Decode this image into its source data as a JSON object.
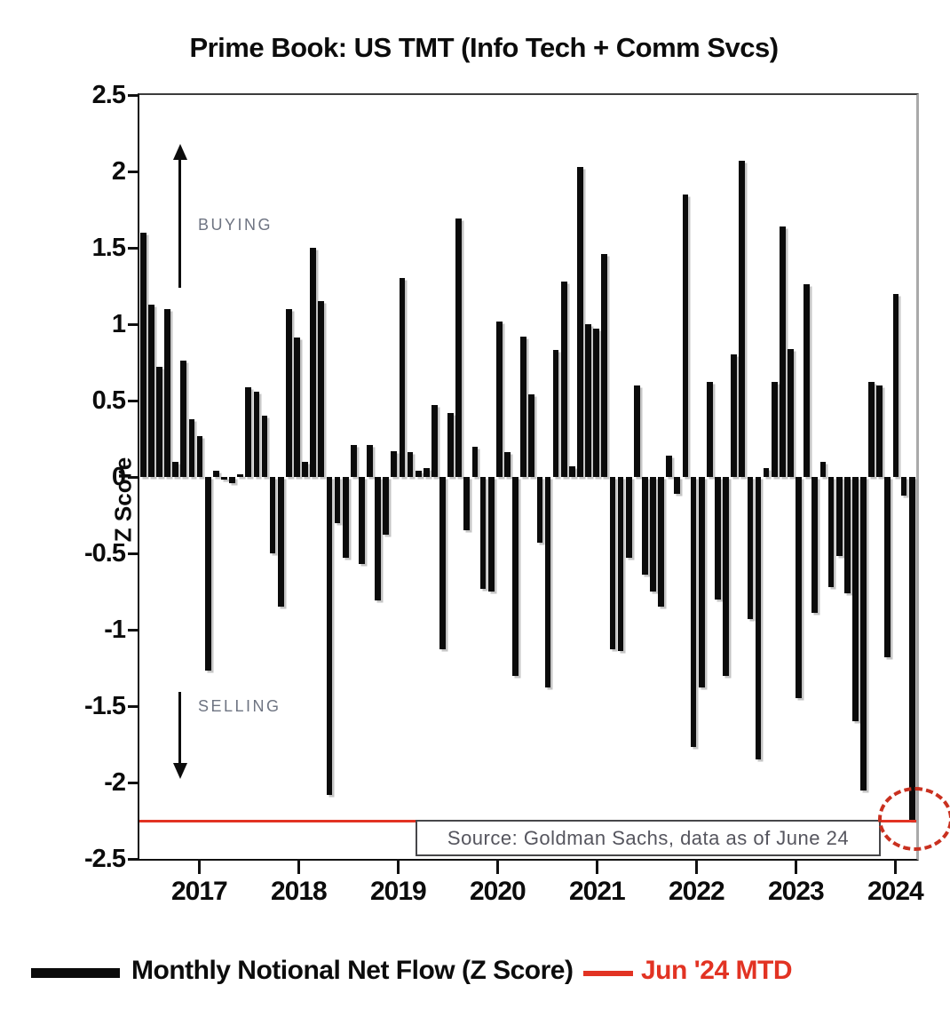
{
  "title": "Prime Book: US TMT (Info Tech + Comm Svcs)",
  "y_axis": {
    "label": "Z Score",
    "tick_labels": [
      "2.5",
      "2",
      "1.5",
      "1",
      "0.5",
      "0",
      "-0.5",
      "-1",
      "-1.5",
      "-2",
      "-2.5"
    ]
  },
  "x_axis": {
    "tick_labels": [
      "2017",
      "2018",
      "2019",
      "2020",
      "2021",
      "2022",
      "2023",
      "2024"
    ]
  },
  "annotations": {
    "buying": "BUYING",
    "selling": "SELLING"
  },
  "source_box": {
    "text": "Source: Goldman Sachs, data as of June 24"
  },
  "legend": {
    "series_label": "Monthly Notional Net Flow (Z Score)",
    "mtd_label": "Jun '24 MTD"
  },
  "colors": {
    "bar": "#0b0b0b",
    "mtd_red": "#e23323",
    "circle_red": "#c9301f",
    "annotation_gray": "#6e7482",
    "source_text": "#55555e",
    "right_border_gray": "#a9a9a9"
  },
  "chart_data": {
    "type": "bar",
    "title": "Prime Book: US TMT (Info Tech + Comm Svcs)",
    "xlabel": "",
    "ylabel": "Z Score",
    "ylim": [
      -2.5,
      2.5
    ],
    "y_ticks": [
      2.5,
      2,
      1.5,
      1,
      0.5,
      0,
      -0.5,
      -1,
      -1.5,
      -2,
      -2.5
    ],
    "x_tick_labels": [
      "2017",
      "2018",
      "2019",
      "2020",
      "2021",
      "2022",
      "2023",
      "2024"
    ],
    "grid": false,
    "legend_position": "bottom",
    "series": [
      {
        "name": "Monthly Notional Net Flow (Z Score)",
        "color": "#0b0b0b",
        "cadence": "monthly",
        "values": [
          1.6,
          1.13,
          0.72,
          1.1,
          0.1,
          0.76,
          0.38,
          0.27,
          -1.27,
          0.04,
          -0.02,
          -0.04,
          0.02,
          0.59,
          0.56,
          0.4,
          -0.5,
          -0.85,
          1.1,
          0.91,
          0.1,
          1.5,
          1.15,
          -2.08,
          -0.3,
          -0.53,
          0.21,
          -0.57,
          0.21,
          -0.81,
          -0.38,
          0.17,
          1.3,
          0.16,
          0.04,
          0.06,
          0.47,
          -1.13,
          0.42,
          1.69,
          -0.35,
          0.2,
          -0.73,
          -0.75,
          1.02,
          0.16,
          -1.3,
          0.92,
          0.54,
          -0.43,
          -1.38,
          0.83,
          1.28,
          0.07,
          2.03,
          1.0,
          0.97,
          1.46,
          -1.13,
          -1.14,
          -0.53,
          0.6,
          -0.64,
          -0.75,
          -0.85,
          0.14,
          -0.11,
          1.85,
          -1.77,
          -1.38,
          0.62,
          -0.8,
          -1.3,
          0.8,
          2.07,
          -0.93,
          -1.85,
          0.06,
          0.62,
          1.64,
          0.84,
          -1.45,
          1.26,
          -0.89,
          0.1,
          -0.72,
          -0.52,
          -0.76,
          -1.6,
          -2.05,
          0.62,
          0.6,
          -1.18,
          1.2,
          -0.12,
          -2.25
        ]
      }
    ],
    "mtd_line": {
      "name": "Jun '24 MTD",
      "value": -2.25,
      "color": "#e23323"
    },
    "highlight": {
      "type": "dashed-ellipse",
      "target": "last-bar",
      "color": "#c9301f"
    },
    "buying_arrow": "up arrow annotation, upper left",
    "selling_arrow": "down arrow annotation, lower left"
  }
}
